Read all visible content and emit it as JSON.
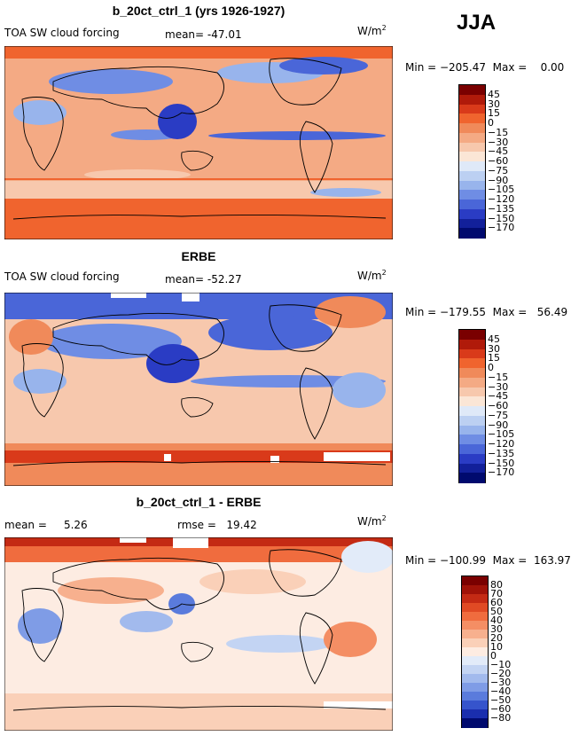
{
  "season": "JJA",
  "panels": [
    {
      "title": "b_20ct_ctrl_1 (yrs 1926-1927)",
      "left_label": "TOA SW cloud forcing",
      "stat_label": "mean=",
      "stat_value": "-47.01",
      "units": "W/m",
      "units_sup": "2",
      "minmax": "Min = −205.47  Max =    0.00",
      "colorbar": {
        "labels": [
          "45",
          "30",
          "15",
          "0",
          "−15",
          "−30",
          "−45",
          "−60",
          "−75",
          "−90",
          "−105",
          "−120",
          "−135",
          "−150",
          "−170"
        ],
        "colors": [
          "#7a0000",
          "#b01a0a",
          "#d93a1a",
          "#f0642e",
          "#f08a5a",
          "#f4aa84",
          "#f7c8ad",
          "#fbe6d6",
          "#dfe9f8",
          "#bcd0f2",
          "#98b4ec",
          "#6f8de4",
          "#4a66d8",
          "#2a3cc4",
          "#12209a",
          "#000a6e"
        ]
      }
    },
    {
      "title": "ERBE",
      "left_label": "TOA SW cloud forcing",
      "stat_label": "mean=",
      "stat_value": "-52.27",
      "units": "W/m",
      "units_sup": "2",
      "minmax": "Min = −179.55  Max =   56.49",
      "colorbar": {
        "labels": [
          "45",
          "30",
          "15",
          "0",
          "−15",
          "−30",
          "−45",
          "−60",
          "−75",
          "−90",
          "−105",
          "−120",
          "−135",
          "−150",
          "−170"
        ],
        "colors": [
          "#7a0000",
          "#b01a0a",
          "#d93a1a",
          "#f0642e",
          "#f08a5a",
          "#f4aa84",
          "#f7c8ad",
          "#fbe6d6",
          "#dfe9f8",
          "#bcd0f2",
          "#98b4ec",
          "#6f8de4",
          "#4a66d8",
          "#2a3cc4",
          "#12209a",
          "#000a6e"
        ]
      }
    },
    {
      "title": "b_20ct_ctrl_1 - ERBE",
      "left_label": "mean =     5.26",
      "stat_label": "rmse =",
      "stat_value": "19.42",
      "units": "W/m",
      "units_sup": "2",
      "minmax": "Min = −100.99  Max =  163.97",
      "colorbar": {
        "labels": [
          "80",
          "70",
          "60",
          "50",
          "40",
          "30",
          "20",
          "10",
          "0",
          "−10",
          "−20",
          "−30",
          "−40",
          "−50",
          "−60",
          "−80"
        ],
        "colors": [
          "#7a0000",
          "#a01208",
          "#c42a14",
          "#e04a24",
          "#f06c3e",
          "#f48e64",
          "#f7b08e",
          "#fad0b8",
          "#fdece2",
          "#e2ebf9",
          "#c3d4f3",
          "#a2baed",
          "#7f9ce6",
          "#5a7bdc",
          "#3654cc",
          "#1a2eae",
          "#000a6e"
        ]
      }
    }
  ],
  "chart_data": [
    {
      "type": "heatmap",
      "title": "b_20ct_ctrl_1 (yrs 1926-1927)",
      "variable": "TOA SW cloud forcing",
      "units": "W/m2",
      "season": "JJA",
      "mean": -47.01,
      "min": -205.47,
      "max": 0.0,
      "colorbar_levels": [
        45,
        30,
        15,
        0,
        -15,
        -30,
        -45,
        -60,
        -75,
        -90,
        -105,
        -120,
        -135,
        -150,
        -170
      ]
    },
    {
      "type": "heatmap",
      "title": "ERBE",
      "variable": "TOA SW cloud forcing",
      "units": "W/m2",
      "season": "JJA",
      "mean": -52.27,
      "min": -179.55,
      "max": 56.49,
      "colorbar_levels": [
        45,
        30,
        15,
        0,
        -15,
        -30,
        -45,
        -60,
        -75,
        -90,
        -105,
        -120,
        -135,
        -150,
        -170
      ]
    },
    {
      "type": "heatmap",
      "title": "b_20ct_ctrl_1 - ERBE",
      "units": "W/m2",
      "season": "JJA",
      "mean": 5.26,
      "rmse": 19.42,
      "min": -100.99,
      "max": 163.97,
      "colorbar_levels": [
        80,
        70,
        60,
        50,
        40,
        30,
        20,
        10,
        0,
        -10,
        -20,
        -30,
        -40,
        -50,
        -60,
        -80
      ]
    }
  ]
}
